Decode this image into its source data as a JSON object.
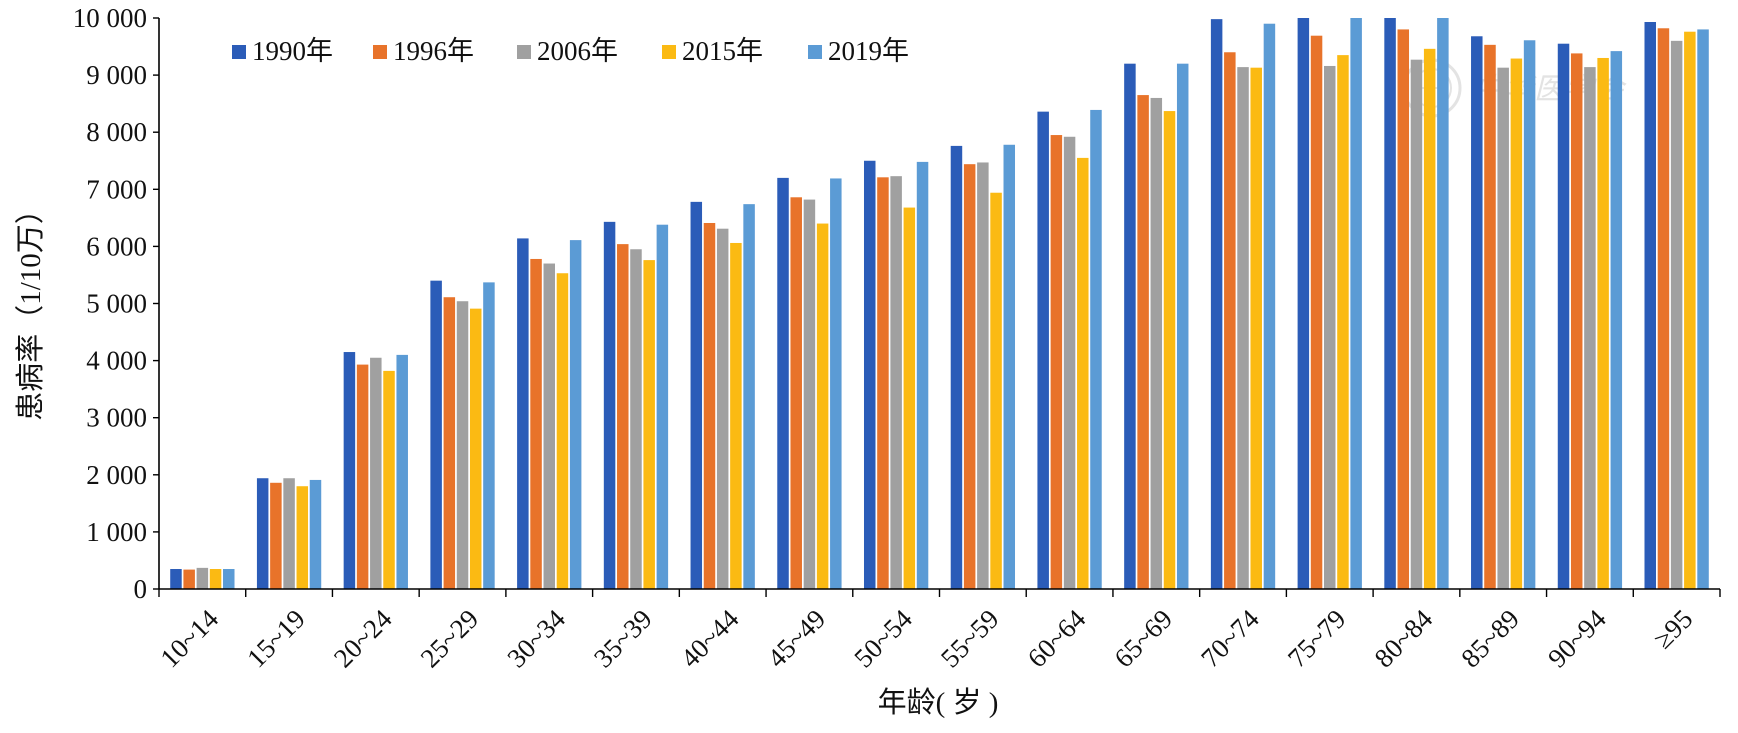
{
  "chart_data": {
    "type": "bar",
    "title": "",
    "xlabel": "年龄( 岁 )",
    "ylabel": "患病率（1/10万）",
    "ylim": [
      0,
      10000
    ],
    "yticks": [
      0,
      1000,
      2000,
      3000,
      4000,
      5000,
      6000,
      7000,
      8000,
      9000,
      10000
    ],
    "ytick_labels": [
      "0",
      "1 000",
      "2 000",
      "3 000",
      "4 000",
      "5 000",
      "6 000",
      "7 000",
      "8 000",
      "9 000",
      "10 000"
    ],
    "grid": false,
    "legend_position": "top-left",
    "categories": [
      "10~14",
      "15~19",
      "20~24",
      "25~29",
      "30~34",
      "35~39",
      "40~44",
      "45~49",
      "50~54",
      "55~59",
      "60~64",
      "65~69",
      "70~74",
      "75~79",
      "80~84",
      "85~89",
      "90~94",
      "≥95"
    ],
    "series": [
      {
        "name": "1990年",
        "color": "#2b5cb8",
        "values": [
          350,
          1940,
          4150,
          5400,
          6140,
          6430,
          6780,
          7200,
          7500,
          7760,
          8360,
          9200,
          9980,
          10000,
          10000,
          9680,
          9550,
          9930
        ]
      },
      {
        "name": "1996年",
        "color": "#e8732a",
        "values": [
          340,
          1860,
          3930,
          5110,
          5780,
          6040,
          6410,
          6860,
          7210,
          7440,
          7950,
          8650,
          9400,
          9690,
          9800,
          9530,
          9380,
          9820
        ]
      },
      {
        "name": "2006年",
        "color": "#a0a0a0",
        "values": [
          370,
          1940,
          4050,
          5040,
          5700,
          5950,
          6310,
          6820,
          7230,
          7470,
          7920,
          8600,
          9140,
          9160,
          9270,
          9130,
          9140,
          9600
        ]
      },
      {
        "name": "2015年",
        "color": "#fbba13",
        "values": [
          350,
          1800,
          3820,
          4910,
          5530,
          5760,
          6060,
          6400,
          6680,
          6940,
          7550,
          8370,
          9130,
          9350,
          9460,
          9290,
          9300,
          9760
        ]
      },
      {
        "name": "2019年",
        "color": "#5b9bd5",
        "values": [
          350,
          1910,
          4100,
          5370,
          6110,
          6380,
          6740,
          7190,
          7480,
          7780,
          8390,
          9200,
          9900,
          10000,
          10000,
          9610,
          9420,
          9800
        ]
      }
    ]
  },
  "watermark": {
    "text": "中华医学会"
  }
}
